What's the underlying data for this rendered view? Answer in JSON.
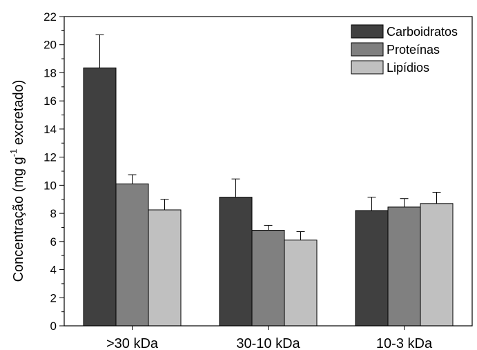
{
  "chart_data": {
    "type": "bar",
    "categories": [
      ">30 kDa",
      "30-10 kDa",
      "10-3 kDa"
    ],
    "series": [
      {
        "name": "Carboidratos",
        "values": [
          18.35,
          9.15,
          8.2
        ],
        "errors": [
          2.35,
          1.3,
          0.95
        ],
        "color": "#404040"
      },
      {
        "name": "Proteínas",
        "values": [
          10.1,
          6.8,
          8.45
        ],
        "errors": [
          0.65,
          0.35,
          0.6
        ],
        "color": "#808080"
      },
      {
        "name": "Lipídios",
        "values": [
          8.25,
          6.1,
          8.7
        ],
        "errors": [
          0.75,
          0.6,
          0.8
        ],
        "color": "#c0c0c0"
      }
    ],
    "ylabel_main": "Concentração (mg g",
    "ylabel_sup": "-1",
    "ylabel_end": " excretado)",
    "xlabel": "",
    "ylim": [
      0,
      22
    ],
    "yticks": [
      "0",
      "2",
      "4",
      "6",
      "8",
      "10",
      "12",
      "14",
      "16",
      "18",
      "20",
      "22"
    ],
    "legend_position": "top-right",
    "grid": false
  }
}
